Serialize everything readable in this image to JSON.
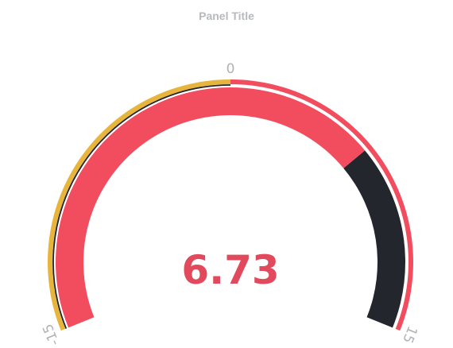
{
  "panel": {
    "title": "Panel Title"
  },
  "chart_data": {
    "type": "gauge",
    "title": "Panel Title",
    "min": -15,
    "max": 15,
    "value": 6.73,
    "value_label": "6.73",
    "tick_labels": {
      "min": "-15",
      "mid": "0",
      "max": "15"
    },
    "thresholds": [
      {
        "from": -15,
        "to": 0,
        "color": "#e8b53c"
      },
      {
        "from": 0,
        "to": 15,
        "color": "#f24d5e"
      }
    ],
    "colors": {
      "value_fill": "#f24d5e",
      "remaining_fill": "#23262d",
      "value_text": "#e04a5c",
      "tick_text": "#b0b2b6"
    }
  }
}
